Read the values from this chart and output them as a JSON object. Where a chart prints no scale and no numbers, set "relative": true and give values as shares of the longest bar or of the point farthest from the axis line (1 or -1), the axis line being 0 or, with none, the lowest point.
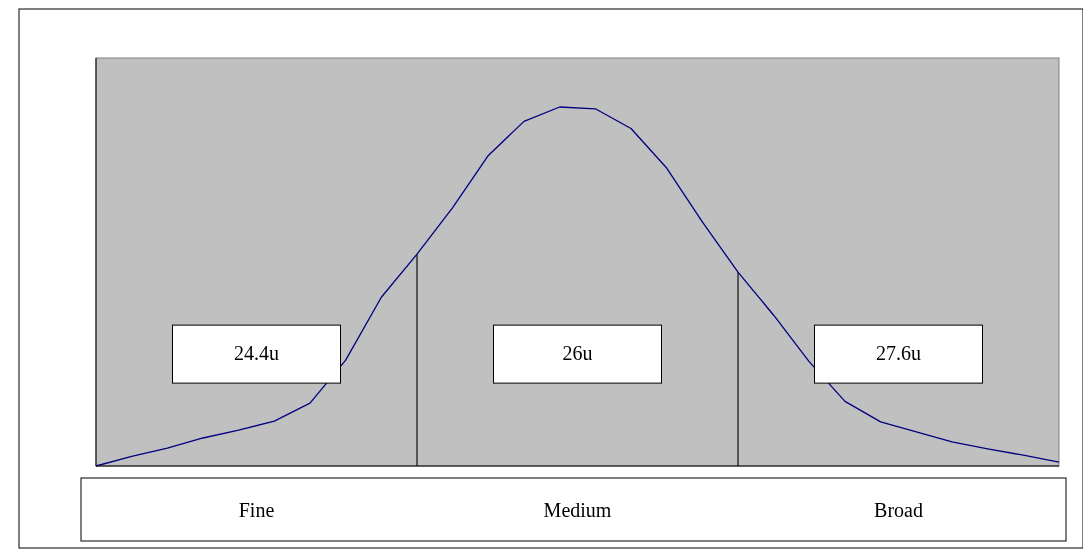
{
  "chart_data": {
    "type": "line",
    "relative": true,
    "categories": [
      null,
      null,
      null,
      null,
      null,
      null,
      null,
      null,
      null,
      null,
      null,
      null,
      null,
      null,
      null,
      null,
      null,
      null,
      null,
      null,
      null,
      null,
      null,
      null,
      null,
      null,
      null,
      null
    ],
    "series": [
      {
        "color": "#000080",
        "values": [
          0,
          0.027,
          0.05,
          0.078,
          0.1,
          0.125,
          0.175,
          0.295,
          0.47,
          0.59,
          0.72,
          0.865,
          0.96,
          1,
          0.995,
          0.94,
          0.83,
          0.68,
          0.54,
          0.42,
          0.29,
          0.18,
          0.123,
          0.095,
          0.067,
          0.048,
          0.03,
          0.011
        ]
      }
    ],
    "annotations": [
      "24.4u",
      "26u",
      "27.6u",
      "Fine",
      "Medium",
      "Broad"
    ],
    "grid": false,
    "marker": "none",
    "line_style": "solid"
  }
}
